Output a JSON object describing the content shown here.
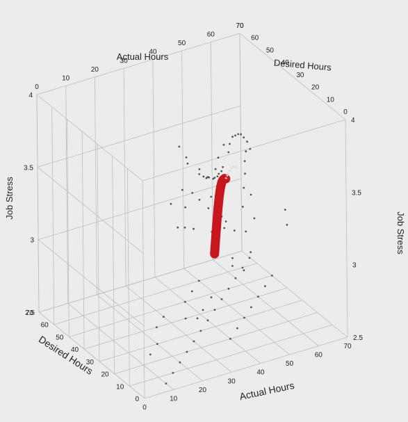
{
  "chart_data": {
    "type": "scatter",
    "title": "",
    "x_axis": {
      "label": "Actual Hours",
      "range": [
        0,
        70
      ],
      "ticks": [
        0,
        10,
        20,
        30,
        40,
        50,
        60,
        70
      ]
    },
    "y_axis": {
      "label": "Desired Hours",
      "range": [
        0,
        70
      ],
      "ticks": [
        0,
        10,
        20,
        30,
        40,
        50,
        60,
        70
      ]
    },
    "z_axis": {
      "label": "Job Stress",
      "range": [
        2.5,
        4
      ],
      "ticks": [
        2.5,
        3,
        3.5,
        4
      ]
    },
    "grid": true,
    "colors": {
      "points": "#555555",
      "curve": "#c8161e",
      "curve_segment": "#d9d9d9",
      "grid": "#bdbdbd",
      "background": "#ececec"
    },
    "series": [
      {
        "kind": "points",
        "points": [
          [
            22,
            18,
            3.95
          ],
          [
            28,
            25,
            3.78
          ],
          [
            30,
            28,
            3.7
          ],
          [
            33,
            26,
            3.66
          ],
          [
            35,
            30,
            3.58
          ],
          [
            38,
            33,
            3.52
          ],
          [
            40,
            35,
            3.48
          ],
          [
            42,
            38,
            3.45
          ],
          [
            44,
            41,
            3.41
          ],
          [
            46,
            42,
            3.38
          ],
          [
            48,
            45,
            3.35
          ],
          [
            50,
            47,
            3.33
          ],
          [
            52,
            50,
            3.31
          ],
          [
            54,
            52,
            3.3
          ],
          [
            56,
            55,
            3.29
          ],
          [
            40,
            25,
            3.3
          ],
          [
            44,
            30,
            3.2
          ],
          [
            46,
            35,
            3.1
          ],
          [
            42,
            32,
            3.0
          ],
          [
            50,
            36,
            3.05
          ],
          [
            55,
            40,
            3.15
          ],
          [
            58,
            45,
            3.22
          ],
          [
            60,
            48,
            3.28
          ],
          [
            62,
            52,
            3.32
          ],
          [
            64,
            55,
            3.35
          ],
          [
            66,
            58,
            3.38
          ],
          [
            68,
            60,
            3.3
          ],
          [
            63,
            50,
            3.1
          ],
          [
            61,
            44,
            3.0
          ],
          [
            57,
            42,
            2.95
          ],
          [
            35,
            22,
            3.25
          ],
          [
            37,
            28,
            3.35
          ],
          [
            39,
            30,
            3.4
          ],
          [
            45,
            38,
            3.25
          ],
          [
            47,
            40,
            3.18
          ],
          [
            52,
            30,
            2.9
          ],
          [
            55,
            35,
            2.88
          ],
          [
            49,
            28,
            2.85
          ],
          [
            43,
            24,
            2.95
          ],
          [
            41,
            20,
            3.05
          ],
          [
            58,
            55,
            3.38
          ],
          [
            60,
            58,
            3.4
          ],
          [
            62,
            60,
            3.42
          ],
          [
            64,
            62,
            3.4
          ],
          [
            66,
            64,
            3.38
          ],
          [
            68,
            66,
            3.35
          ],
          [
            70,
            68,
            3.3
          ],
          [
            60,
            62,
            3.36
          ],
          [
            56,
            58,
            3.33
          ],
          [
            54,
            56,
            3.28
          ],
          [
            20,
            20,
            3.55
          ],
          [
            25,
            22,
            3.6
          ],
          [
            27,
            24,
            3.45
          ],
          [
            31,
            27,
            3.5
          ],
          [
            36,
            32,
            3.38
          ],
          [
            30,
            35,
            3.2
          ],
          [
            34,
            38,
            3.15
          ],
          [
            38,
            40,
            3.1
          ],
          [
            65,
            30,
            3.05
          ],
          [
            67,
            35,
            3.1
          ],
          [
            10,
            5,
            2.5
          ],
          [
            15,
            10,
            2.5
          ],
          [
            20,
            15,
            2.5
          ],
          [
            25,
            20,
            2.5
          ],
          [
            30,
            25,
            2.5
          ],
          [
            35,
            30,
            2.5
          ],
          [
            40,
            35,
            2.5
          ],
          [
            45,
            40,
            2.5
          ],
          [
            50,
            45,
            2.5
          ],
          [
            55,
            50,
            2.5
          ],
          [
            60,
            55,
            2.5
          ],
          [
            65,
            60,
            2.5
          ],
          [
            40,
            20,
            2.5
          ],
          [
            45,
            25,
            2.5
          ],
          [
            50,
            30,
            2.5
          ],
          [
            55,
            35,
            2.5
          ],
          [
            35,
            40,
            2.5
          ],
          [
            30,
            45,
            2.5
          ],
          [
            25,
            40,
            2.5
          ],
          [
            40,
            50,
            2.5
          ],
          [
            45,
            55,
            2.5
          ],
          [
            50,
            60,
            2.5
          ],
          [
            20,
            30,
            2.5
          ],
          [
            15,
            25,
            2.5
          ],
          [
            60,
            40,
            2.5
          ],
          [
            65,
            45,
            2.5
          ],
          [
            70,
            50,
            2.5
          ],
          [
            38,
            38,
            2.5
          ],
          [
            42,
            42,
            2.5
          ],
          [
            48,
            48,
            2.5
          ]
        ]
      },
      {
        "kind": "curve",
        "points": [
          [
            40,
            30,
            3.0
          ],
          [
            42,
            33,
            3.08
          ],
          [
            44,
            36,
            3.15
          ],
          [
            46,
            39,
            3.21
          ],
          [
            48,
            42,
            3.25
          ],
          [
            50,
            45,
            3.27
          ],
          [
            52,
            48,
            3.27
          ],
          [
            54,
            51,
            3.25
          ],
          [
            56,
            54,
            3.22
          ],
          [
            58,
            57,
            3.18
          ]
        ]
      }
    ]
  }
}
